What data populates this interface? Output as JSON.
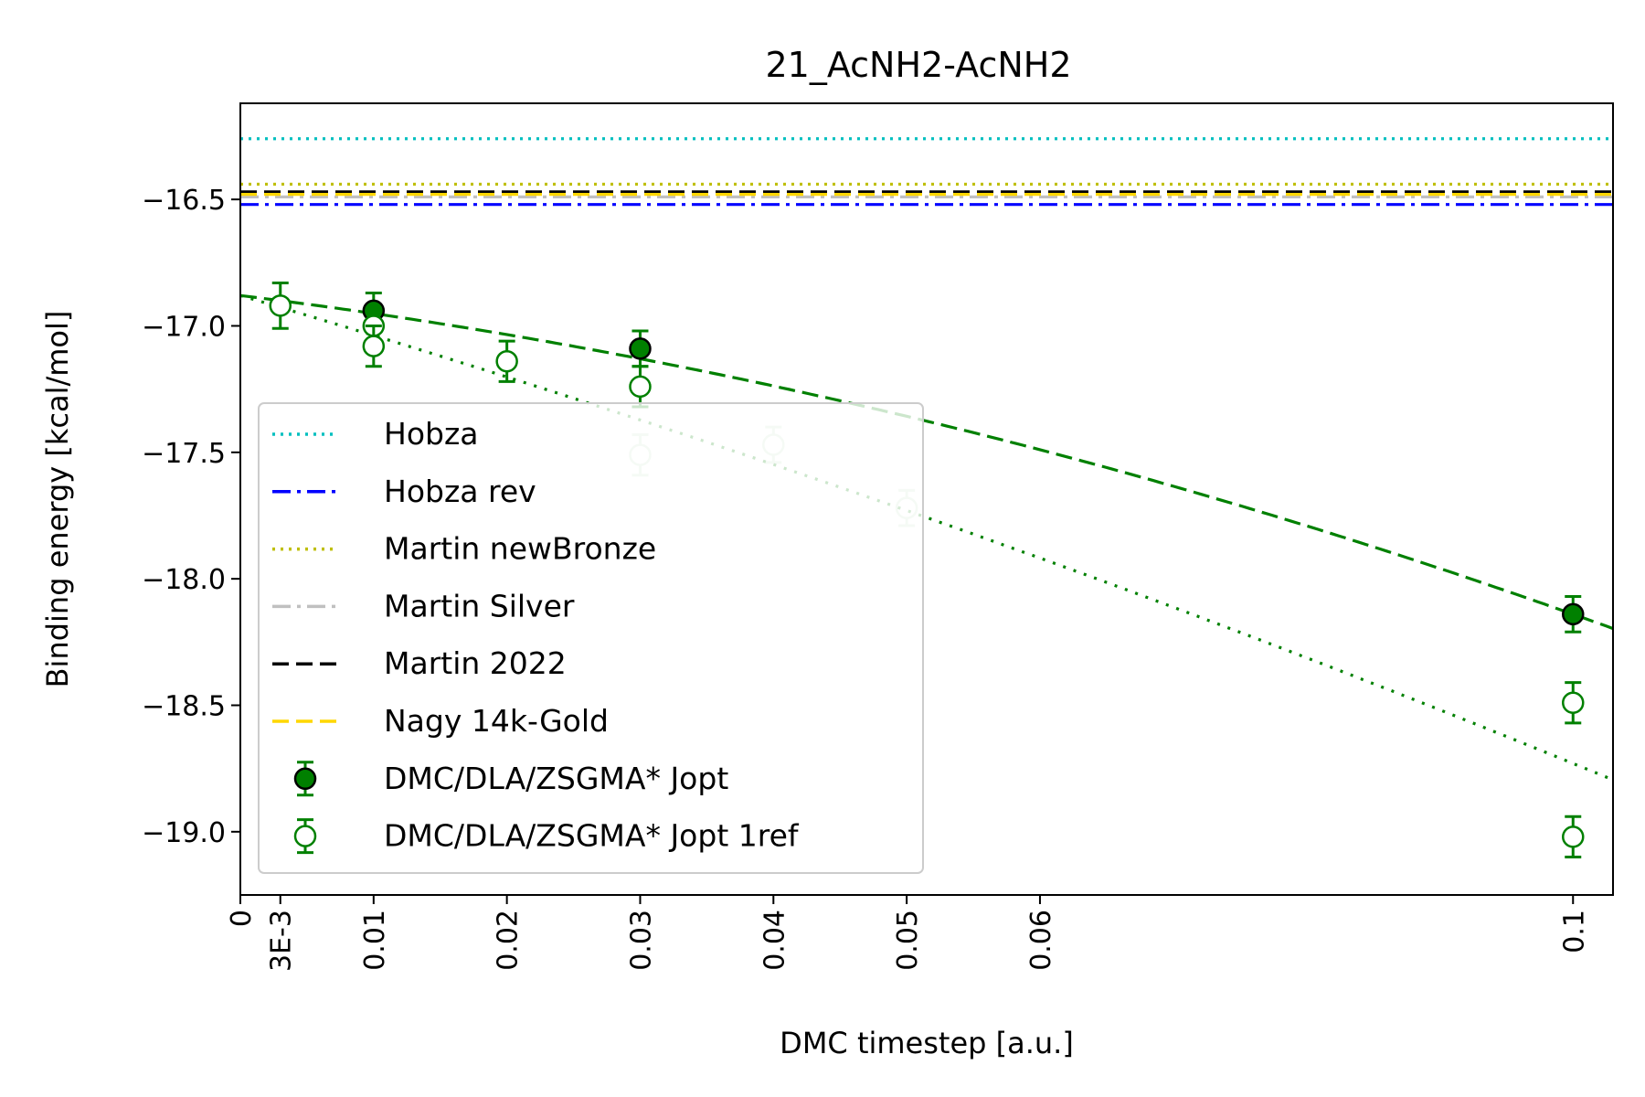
{
  "chart_data": {
    "type": "scatter",
    "title": "21_AcNH2-AcNH2",
    "xlabel": "DMC timestep [a.u.]",
    "ylabel": "Binding energy [kcal/mol]",
    "xlim": [
      0,
      0.103
    ],
    "ylim": [
      -19.25,
      -16.12
    ],
    "xticks": [
      {
        "value": 0,
        "label": "0"
      },
      {
        "value": 0.003,
        "label": "3E-3"
      },
      {
        "value": 0.01,
        "label": "0.01"
      },
      {
        "value": 0.02,
        "label": "0.02"
      },
      {
        "value": 0.03,
        "label": "0.03"
      },
      {
        "value": 0.04,
        "label": "0.04"
      },
      {
        "value": 0.05,
        "label": "0.05"
      },
      {
        "value": 0.06,
        "label": "0.06"
      },
      {
        "value": 0.1,
        "label": "0.1"
      }
    ],
    "yticks": [
      {
        "value": -16.5,
        "label": "−16.5"
      },
      {
        "value": -17.0,
        "label": "−17.0"
      },
      {
        "value": -17.5,
        "label": "−17.5"
      },
      {
        "value": -18.0,
        "label": "−18.0"
      },
      {
        "value": -18.5,
        "label": "−18.5"
      },
      {
        "value": -19.0,
        "label": "−19.0"
      }
    ],
    "legend_position": "lower-left",
    "reference_lines": [
      {
        "name": "Hobza",
        "y": -16.26,
        "color": "#00bfbf",
        "style": "dotted"
      },
      {
        "name": "Hobza rev",
        "y": -16.52,
        "color": "#0000ff",
        "style": "dashdot"
      },
      {
        "name": "Martin newBronze",
        "y": -16.44,
        "color": "#bfbf00",
        "style": "dotted"
      },
      {
        "name": "Martin Silver",
        "y": -16.49,
        "color": "#c0c0c0",
        "style": "dashdot"
      },
      {
        "name": "Martin 2022",
        "y": -16.47,
        "color": "#000000",
        "style": "dashed"
      },
      {
        "name": "Nagy 14k-Gold",
        "y": -16.48,
        "color": "#ffd700",
        "style": "dashed"
      }
    ],
    "series": [
      {
        "name": "DMC/DLA/ZSGMA* Jopt",
        "marker": "filled-circle",
        "color": "#008000",
        "points": [
          {
            "x": 0.01,
            "y": -16.94,
            "err": 0.07
          },
          {
            "x": 0.03,
            "y": -17.09,
            "err": 0.07
          },
          {
            "x": 0.1,
            "y": -18.14,
            "err": 0.07
          }
        ]
      },
      {
        "name": "DMC/DLA/ZSGMA* Jopt 1ref",
        "marker": "open-circle",
        "color": "#008000",
        "points": [
          {
            "x": 0.003,
            "y": -16.92,
            "err": 0.09,
            "faded": false
          },
          {
            "x": 0.01,
            "y": -17.0,
            "err": 0.07,
            "faded": false
          },
          {
            "x": 0.01,
            "y": -17.08,
            "err": 0.08,
            "faded": false
          },
          {
            "x": 0.02,
            "y": -17.14,
            "err": 0.08,
            "faded": false
          },
          {
            "x": 0.03,
            "y": -17.24,
            "err": 0.08,
            "faded": false
          },
          {
            "x": 0.03,
            "y": -17.51,
            "err": 0.08,
            "faded": true
          },
          {
            "x": 0.04,
            "y": -17.47,
            "err": 0.07,
            "faded": true
          },
          {
            "x": 0.05,
            "y": -17.72,
            "err": 0.07,
            "faded": true
          },
          {
            "x": 0.1,
            "y": -18.49,
            "err": 0.08,
            "faded": false
          },
          {
            "x": 0.1,
            "y": -19.02,
            "err": 0.08,
            "faded": false
          }
        ]
      }
    ],
    "fits": [
      {
        "series": "DMC/DLA/ZSGMA* Jopt",
        "style": "dashed",
        "color": "#008000",
        "coeffs": [
          -16.88,
          -6.5,
          -61.0
        ]
      },
      {
        "series": "DMC/DLA/ZSGMA* Jopt 1ref",
        "style": "dotted",
        "color": "#008000",
        "coeffs": [
          -16.88,
          -15.5,
          -30.0
        ]
      }
    ],
    "legend": [
      {
        "label": "Hobza",
        "color": "#00bfbf",
        "style": "dotted"
      },
      {
        "label": "Hobza rev",
        "color": "#0000ff",
        "style": "dashdot"
      },
      {
        "label": "Martin newBronze",
        "color": "#bfbf00",
        "style": "dotted"
      },
      {
        "label": "Martin Silver",
        "color": "#c0c0c0",
        "style": "dashdot"
      },
      {
        "label": "Martin 2022",
        "color": "#000000",
        "style": "dashed"
      },
      {
        "label": "Nagy 14k-Gold",
        "color": "#ffd700",
        "style": "dashed"
      },
      {
        "label": "DMC/DLA/ZSGMA* Jopt",
        "color": "#008000",
        "style": "filled-marker"
      },
      {
        "label": "DMC/DLA/ZSGMA* Jopt 1ref",
        "color": "#008000",
        "style": "open-marker"
      }
    ]
  }
}
